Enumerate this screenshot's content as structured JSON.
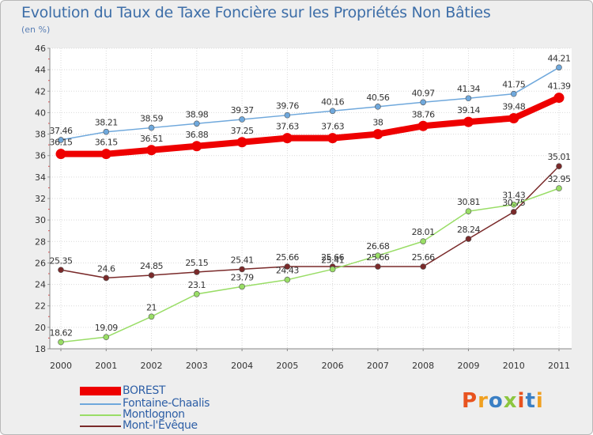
{
  "chart_data": {
    "type": "line",
    "title": "Evolution du Taux de Taxe Foncière sur les Propriétés Non Bâties",
    "ylabel": "(en %)",
    "xlabel": "",
    "x": [
      "2000",
      "2001",
      "2002",
      "2003",
      "2004",
      "2005",
      "2006",
      "2007",
      "2008",
      "2009",
      "2010",
      "2011"
    ],
    "ylim": [
      18,
      46
    ],
    "yticks": [
      18,
      20,
      22,
      24,
      26,
      28,
      30,
      32,
      34,
      36,
      38,
      40,
      42,
      44,
      46
    ],
    "grid": true,
    "legend_position": "bottom-left",
    "series": [
      {
        "name": "BOREST",
        "color": "#ee0000",
        "values": [
          36.15,
          36.15,
          36.51,
          36.88,
          37.25,
          37.63,
          37.63,
          38,
          38.76,
          39.14,
          39.48,
          41.39
        ],
        "labels": [
          "36.15",
          "36.15",
          "36.51",
          "36.88",
          "37.25",
          "37.63",
          "37.63",
          "38",
          "38.76",
          "39.14",
          "39.48",
          "41.39"
        ]
      },
      {
        "name": "Fontaine-Chaalis",
        "color": "#6fa8dc",
        "values": [
          37.46,
          38.21,
          38.59,
          38.98,
          39.37,
          39.76,
          40.16,
          40.56,
          40.97,
          41.34,
          41.75,
          44.21
        ],
        "labels": [
          "37.46",
          "38.21",
          "38.59",
          "38.98",
          "39.37",
          "39.76",
          "40.16",
          "40.56",
          "40.97",
          "41.34",
          "41.75",
          "44.21"
        ]
      },
      {
        "name": "Montlognon",
        "color": "#99dd66",
        "values": [
          18.62,
          19.09,
          21,
          23.1,
          23.79,
          24.43,
          25.41,
          26.68,
          28.01,
          30.81,
          31.43,
          32.95
        ],
        "labels": [
          "18.62",
          "19.09",
          "21",
          "23.1",
          "23.79",
          "24.43",
          "25.41",
          "26.68",
          "28.01",
          "30.81",
          "31.43",
          "32.95"
        ]
      },
      {
        "name": "Mont-l'Evêque",
        "color": "#7a2a2a",
        "values": [
          25.35,
          24.6,
          24.85,
          25.15,
          25.41,
          25.66,
          25.66,
          25.66,
          25.66,
          28.24,
          30.75,
          35.01
        ],
        "labels": [
          "25.35",
          "24.6",
          "24.85",
          "25.15",
          "25.41",
          "25.66",
          "25.66",
          "25.66",
          "25.66",
          "28.24",
          "30.75",
          "35.01"
        ]
      }
    ]
  },
  "logo": {
    "text": "Proxiti",
    "colors": [
      "#e8531f",
      "#f0a020",
      "#3a7fc4",
      "#8cc63f",
      "#e8531f",
      "#3a7fc4",
      "#f0a020"
    ]
  }
}
